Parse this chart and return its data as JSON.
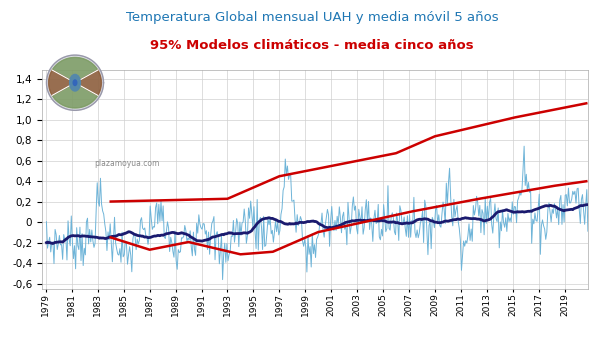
{
  "title_line1": "Temperatura Global mensual UAH y media móvil 5 años",
  "title_line2": "95% Modelos climáticos - media cinco años",
  "title_color1": "#1F77B4",
  "title_color2": "#CC0000",
  "ylim": [
    -0.65,
    1.48
  ],
  "xlim": [
    1978.7,
    2020.8
  ],
  "yticks": [
    -0.6,
    -0.4,
    -0.2,
    0.0,
    0.2,
    0.4,
    0.6,
    0.8,
    1.0,
    1.2,
    1.4
  ],
  "xticks": [
    1979,
    1981,
    1983,
    1985,
    1987,
    1989,
    1991,
    1993,
    1995,
    1997,
    1999,
    2001,
    2003,
    2005,
    2007,
    2009,
    2011,
    2013,
    2015,
    2017,
    2019
  ],
  "bg_color": "#FFFFFF",
  "grid_color": "#D0D0D0",
  "watermark": "plazamoyua.com",
  "uah_color": "#6EB4D8",
  "mavg_color": "#1A1A6E",
  "model_color": "#CC0000",
  "uah_linewidth": 0.7,
  "mavg_linewidth": 2.0,
  "model_linewidth": 1.8,
  "title_fontsize": 9.5,
  "subtitle_fontsize": 9.5
}
